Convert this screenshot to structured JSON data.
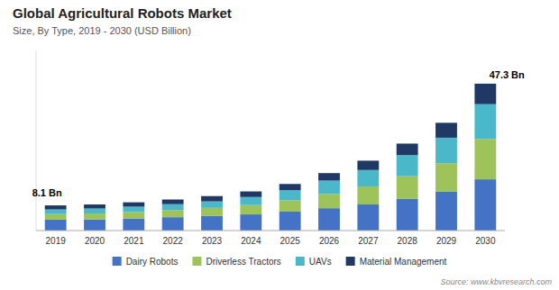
{
  "chart_data": {
    "type": "bar",
    "stacked": true,
    "title": "Global Agricultural Robots Market",
    "subtitle": "Size, By Type, 2019 - 2030 (USD Billion)",
    "source": "Source: www.kbvresearch.com",
    "categories": [
      "2019",
      "2020",
      "2021",
      "2022",
      "2023",
      "2024",
      "2025",
      "2026",
      "2027",
      "2028",
      "2029",
      "2030"
    ],
    "series": [
      {
        "name": "Dairy Robots",
        "color": "#4472c4",
        "values": [
          3.5,
          3.6,
          3.9,
          4.3,
          4.7,
          5.2,
          6.1,
          7.2,
          8.4,
          10.2,
          12.5,
          16.5
        ]
      },
      {
        "name": "Driverless Tractors",
        "color": "#9dc35a",
        "values": [
          1.8,
          1.9,
          2.1,
          2.3,
          2.6,
          3.0,
          3.6,
          4.6,
          5.8,
          7.3,
          9.2,
          13.0
        ]
      },
      {
        "name": "UAVs",
        "color": "#4ab8c9",
        "values": [
          1.5,
          1.6,
          1.7,
          1.9,
          2.1,
          2.6,
          3.3,
          4.3,
          5.3,
          6.8,
          8.2,
          11.2
        ]
      },
      {
        "name": "Material Management",
        "color": "#1f3864",
        "values": [
          1.3,
          1.3,
          1.4,
          1.5,
          1.7,
          1.8,
          2.0,
          2.4,
          3.0,
          3.7,
          4.8,
          6.6
        ]
      }
    ],
    "annotations": [
      {
        "x": "2019",
        "text": "8.1 Bn"
      },
      {
        "x": "2030",
        "text": "47.3 Bn"
      }
    ],
    "ylim": [
      0,
      58
    ],
    "tick_labels": "x",
    "grid": false,
    "legend": "bottom"
  }
}
